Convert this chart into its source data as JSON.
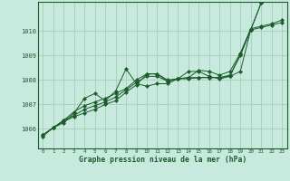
{
  "title": "Graphe pression niveau de la mer (hPa)",
  "bg_color": "#c8eade",
  "grid_color": "#a8ccbc",
  "line_color": "#1a5c2a",
  "x_ticks": [
    0,
    1,
    2,
    3,
    4,
    5,
    6,
    7,
    8,
    9,
    10,
    11,
    12,
    13,
    14,
    15,
    16,
    17,
    18,
    19,
    20,
    21,
    22,
    23
  ],
  "y_ticks": [
    1006,
    1007,
    1008,
    1009,
    1010
  ],
  "ylim": [
    1005.2,
    1011.2
  ],
  "xlim": [
    -0.5,
    23.5
  ],
  "series": [
    [
      1005.75,
      1006.05,
      1006.3,
      1006.5,
      1006.65,
      1006.8,
      1007.0,
      1007.15,
      1007.5,
      1007.8,
      1008.25,
      1008.25,
      1008.0,
      1008.05,
      1008.05,
      1008.1,
      1008.1,
      1008.1,
      1008.2,
      1009.0,
      1010.05,
      1011.15,
      1011.3,
      1011.5
    ],
    [
      1005.75,
      1006.05,
      1006.35,
      1006.55,
      1006.8,
      1006.95,
      1007.1,
      1007.3,
      1007.6,
      1007.9,
      1008.15,
      1008.15,
      1007.95,
      1008.05,
      1008.1,
      1008.1,
      1008.1,
      1008.1,
      1008.15,
      1009.05,
      1010.05,
      1010.15,
      1010.25,
      1010.35
    ],
    [
      1005.75,
      1006.05,
      1006.35,
      1006.7,
      1006.95,
      1007.1,
      1007.25,
      1007.45,
      1007.65,
      1008.0,
      1008.25,
      1008.25,
      1007.95,
      1008.05,
      1008.1,
      1008.4,
      1008.35,
      1008.2,
      1008.35,
      1009.1,
      1010.1,
      1010.2,
      1010.3,
      1010.45
    ],
    [
      1005.7,
      1006.05,
      1006.25,
      1006.65,
      1007.25,
      1007.45,
      1007.15,
      1007.55,
      1008.45,
      1007.85,
      1007.75,
      1007.85,
      1007.85,
      1008.05,
      1008.35,
      1008.35,
      1008.15,
      1008.05,
      1008.15,
      1008.35,
      1010.05,
      1011.15,
      1011.35,
      1011.55
    ]
  ]
}
